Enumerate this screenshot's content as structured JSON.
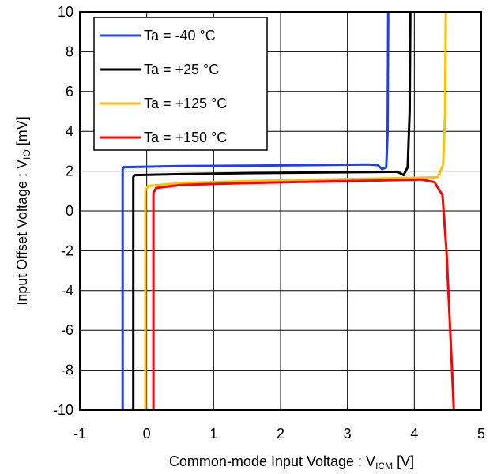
{
  "chart_data": {
    "type": "line",
    "title": "",
    "xlabel": {
      "main": "Common-mode Input Voltage : V",
      "sub": "ICM",
      "unit": " [V]"
    },
    "ylabel": {
      "main": "Input Offset Voltage : V",
      "sub": "IO",
      "unit": " [mV]"
    },
    "xlim": [
      -1,
      5
    ],
    "ylim": [
      -10,
      10
    ],
    "xticks": [
      -1,
      0,
      1,
      2,
      3,
      4,
      5
    ],
    "yticks": [
      -10,
      -8,
      -6,
      -4,
      -2,
      0,
      2,
      4,
      6,
      8,
      10
    ],
    "grid": true,
    "legend_position": "top-left",
    "series": [
      {
        "name": "Ta = -40 °C",
        "color": "#1f3fe8",
        "points": [
          [
            -0.36,
            -10
          ],
          [
            -0.36,
            2.1
          ],
          [
            -0.34,
            2.2
          ],
          [
            0.5,
            2.25
          ],
          [
            1.5,
            2.27
          ],
          [
            2.5,
            2.3
          ],
          [
            3.3,
            2.33
          ],
          [
            3.45,
            2.3
          ],
          [
            3.52,
            2.1
          ],
          [
            3.58,
            2.2
          ],
          [
            3.6,
            4
          ],
          [
            3.61,
            10
          ]
        ]
      },
      {
        "name": "Ta = +25 °C",
        "color": "#000000",
        "points": [
          [
            -0.2,
            -10
          ],
          [
            -0.2,
            1.7
          ],
          [
            -0.18,
            1.8
          ],
          [
            0.5,
            1.85
          ],
          [
            1.5,
            1.9
          ],
          [
            2.5,
            1.93
          ],
          [
            3.5,
            1.96
          ],
          [
            3.75,
            1.97
          ],
          [
            3.84,
            1.8
          ],
          [
            3.9,
            2.2
          ],
          [
            3.93,
            5
          ],
          [
            3.94,
            10
          ]
        ]
      },
      {
        "name": "Ta = +125 °C",
        "color": "#ffc000",
        "points": [
          [
            -0.02,
            -10
          ],
          [
            -0.02,
            1.0
          ],
          [
            0.02,
            1.25
          ],
          [
            0.5,
            1.4
          ],
          [
            1.5,
            1.5
          ],
          [
            2.5,
            1.57
          ],
          [
            3.5,
            1.63
          ],
          [
            4.1,
            1.67
          ],
          [
            4.35,
            1.7
          ],
          [
            4.43,
            2.3
          ],
          [
            4.46,
            5
          ],
          [
            4.47,
            10
          ]
        ]
      },
      {
        "name": "Ta = +150 °C",
        "color": "#ff0000",
        "points": [
          [
            0.1,
            -10
          ],
          [
            0.1,
            0.9
          ],
          [
            0.14,
            1.15
          ],
          [
            0.5,
            1.3
          ],
          [
            1.5,
            1.4
          ],
          [
            2.5,
            1.47
          ],
          [
            3.5,
            1.53
          ],
          [
            4.1,
            1.58
          ],
          [
            4.3,
            1.45
          ],
          [
            4.42,
            0.8
          ],
          [
            4.48,
            -2
          ],
          [
            4.55,
            -7
          ],
          [
            4.59,
            -10
          ]
        ]
      }
    ]
  }
}
